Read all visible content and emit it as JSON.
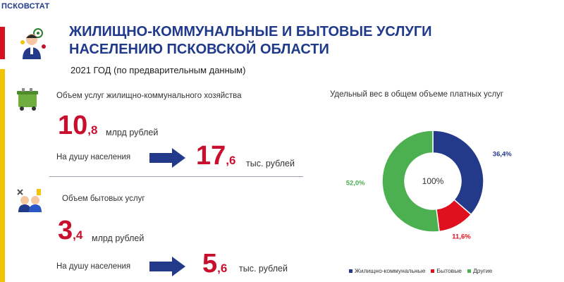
{
  "header": {
    "brand": "ПСКОВСТАТ",
    "title_line1": "ЖИЛИЩНО-КОММУНАЛЬНЫЕ И БЫТОВЫЕ УСЛУГИ",
    "title_line2": "НАСЕЛЕНИЮ ПСКОВСКОЙ ОБЛАСТИ",
    "subtitle": "2021 ГОД (по предварительным данным)"
  },
  "housing": {
    "label": "Объем услуг жилищно-коммунального хозяйства",
    "value_int": "10",
    "value_dec": ",8",
    "value_unit": "млрд рублей",
    "percap_label": "На душу населения",
    "percap_int": "17",
    "percap_dec": ",6",
    "percap_unit": "тыс. рублей"
  },
  "household": {
    "label": "Объем бытовых услуг",
    "value_int": "3",
    "value_dec": ",4",
    "value_unit": "млрд рублей",
    "percap_label": "На душу населения",
    "percap_int": "5",
    "percap_dec": ",6",
    "percap_unit": "тыс. рублей"
  },
  "chart_data": {
    "type": "pie",
    "title": "Удельный вес в общем объеме платных услуг",
    "center_label": "100%",
    "legend_position": "bottom",
    "series": [
      {
        "name": "Жилищно-коммунальные",
        "value": 36.4,
        "label": "36,4%",
        "color": "#233a8b"
      },
      {
        "name": "Бытовые",
        "value": 11.6,
        "label": "11,6%",
        "color": "#e0101f"
      },
      {
        "name": "Другие",
        "value": 52.0,
        "label": "52,0%",
        "color": "#4caf50"
      }
    ]
  }
}
